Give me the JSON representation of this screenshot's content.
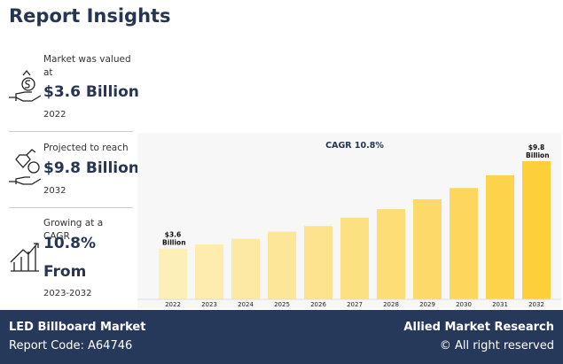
{
  "header": {
    "title": "Report Insights"
  },
  "stats": [
    {
      "label": "Market was valued at",
      "value": "$3.6 Billion",
      "sub": "2022"
    },
    {
      "label": "Projected to reach",
      "value": "$9.8 Billion",
      "sub": "2032"
    },
    {
      "label": "Growing at a CAGR",
      "value": "10.8%",
      "value2": "From",
      "sub": "2023-2032"
    }
  ],
  "chart_data": {
    "type": "bar",
    "title": "CAGR 10.8%",
    "categories": [
      "2022",
      "2023",
      "2024",
      "2025",
      "2026",
      "2027",
      "2028",
      "2029",
      "2030",
      "2031",
      "2032"
    ],
    "values": [
      3.6,
      3.9,
      4.3,
      4.8,
      5.2,
      5.8,
      6.4,
      7.1,
      7.9,
      8.8,
      9.8
    ],
    "value_labels": [
      "$3.6 Billion",
      null,
      null,
      null,
      null,
      null,
      null,
      null,
      null,
      null,
      "$9.8 Billion"
    ],
    "colors": [
      "#fdefb8",
      "#fdecad",
      "#fde9a3",
      "#fde698",
      "#fde38d",
      "#fde082",
      "#fddd76",
      "#fdd96a",
      "#fdd65e",
      "#fdd34c",
      "#fdcf3a"
    ]
  },
  "footer": {
    "market": "LED Billboard Market",
    "code": "Report Code: A64746",
    "brand": "Allied Market Research",
    "rights": "© All right reserved"
  }
}
